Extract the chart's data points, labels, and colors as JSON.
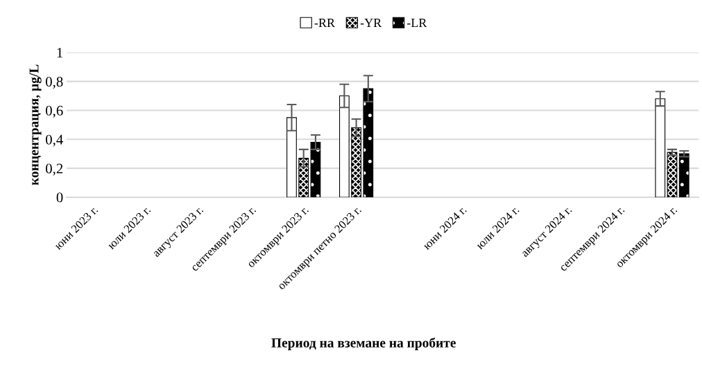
{
  "chart_data": {
    "type": "bar",
    "xlabel": "Период на вземане на пробите",
    "ylabel": "концентрация, µg/L",
    "categories": [
      "юни 2023 г.",
      "юли 2023 г.",
      "август 2023 г.",
      "септември 2023 г.",
      "октомври 2023 г.",
      "октомври петно 2023 г.",
      null,
      "юни 2024 г.",
      "юли 2024 г.",
      "август 2024 г.",
      "септември 2024 г.",
      "октомври 2024 г."
    ],
    "series": [
      {
        "name": "-RR",
        "color": "#ffffff",
        "values": [
          null,
          null,
          null,
          null,
          0.55,
          0.7,
          null,
          null,
          null,
          null,
          null,
          0.68
        ],
        "errors": [
          null,
          null,
          null,
          null,
          0.09,
          0.08,
          null,
          null,
          null,
          null,
          null,
          0.05
        ]
      },
      {
        "name": "-YR",
        "color": "#000000",
        "values": [
          null,
          null,
          null,
          null,
          0.27,
          0.48,
          null,
          null,
          null,
          null,
          null,
          0.31
        ],
        "errors": [
          null,
          null,
          null,
          null,
          0.06,
          0.06,
          null,
          null,
          null,
          null,
          null,
          0.02
        ]
      },
      {
        "name": "-LR",
        "color": "#000000",
        "values": [
          null,
          null,
          null,
          null,
          0.38,
          0.75,
          null,
          null,
          null,
          null,
          null,
          0.3
        ],
        "errors": [
          null,
          null,
          null,
          null,
          0.05,
          0.09,
          null,
          null,
          null,
          null,
          null,
          0.02
        ]
      }
    ],
    "ylim": [
      0,
      1
    ],
    "yticks": [
      0,
      {
        "value": 0.2,
        "label": "0,2"
      },
      {
        "value": 0.4,
        "label": "0,4"
      },
      {
        "value": 0.6,
        "label": "0,6"
      },
      {
        "value": 0.8,
        "label": "0,8"
      },
      1
    ],
    "grid": "y",
    "legend": "top"
  }
}
